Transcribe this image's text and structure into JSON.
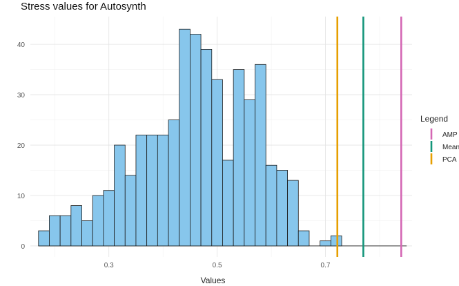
{
  "chart_data": {
    "type": "bar",
    "title": "Stress values for Autosynth",
    "xlabel": "Values",
    "ylabel": "",
    "x_ticks": [
      0.3,
      0.5,
      0.7
    ],
    "y_ticks": [
      0,
      10,
      20,
      30,
      40
    ],
    "xlim": [
      0.155,
      0.86
    ],
    "ylim": [
      -2.2,
      45.5
    ],
    "bin_width": 0.02,
    "bin_start": 0.17,
    "values": [
      3,
      6,
      6,
      8,
      5,
      10,
      11,
      20,
      14,
      22,
      22,
      22,
      25,
      43,
      42,
      39,
      33,
      17,
      35,
      29,
      36,
      16,
      15,
      13,
      3,
      0,
      1,
      2
    ],
    "baseline_end": 0.85,
    "bar_fill": "#87C6EC",
    "bar_stroke": "#1a1a1a",
    "grid": true,
    "legend": {
      "title": "Legend",
      "position": "right",
      "items": [
        {
          "label": "AMP",
          "color": "#D467B4",
          "x": 0.84
        },
        {
          "label": "Mean",
          "color": "#14967A",
          "x": 0.77
        },
        {
          "label": "PCA",
          "color": "#E69F00",
          "x": 0.722
        }
      ]
    }
  }
}
